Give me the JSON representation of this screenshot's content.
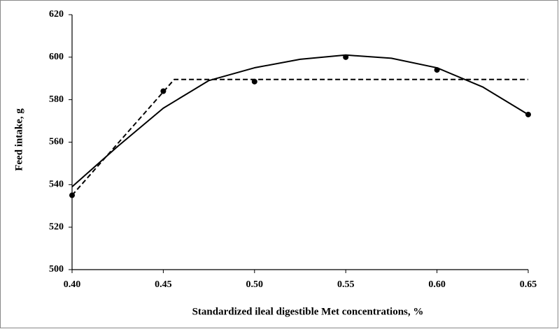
{
  "chart_data": {
    "type": "scatter",
    "xlabel": "Standardized ileal digestible Met concentrations, %",
    "ylabel": "Feed intake, g",
    "xlim": [
      0.4,
      0.65
    ],
    "xticks": [
      {
        "value": 0.4,
        "label": "0.40"
      },
      {
        "value": 0.45,
        "label": "0.45"
      },
      {
        "value": 0.5,
        "label": "0.50"
      },
      {
        "value": 0.55,
        "label": "0.55"
      },
      {
        "value": 0.6,
        "label": "0.60"
      },
      {
        "value": 0.65,
        "label": "0.65"
      }
    ],
    "ylim": [
      500,
      620
    ],
    "yticks": [
      500,
      520,
      540,
      560,
      580,
      600,
      620
    ],
    "grid": false,
    "series": [
      {
        "mode": "markers",
        "color": "#000000",
        "x": [
          0.4,
          0.45,
          0.5,
          0.55,
          0.6,
          0.65
        ],
        "values": [
          535,
          584,
          588.5,
          600,
          594,
          573
        ]
      },
      {
        "mode": "line",
        "dash": false,
        "color": "#000000",
        "x": [
          0.4,
          0.425,
          0.45,
          0.475,
          0.5,
          0.525,
          0.55,
          0.575,
          0.6,
          0.625,
          0.65
        ],
        "values": [
          539,
          558,
          576,
          589,
          595,
          599,
          601,
          599.5,
          595,
          586,
          573
        ]
      },
      {
        "mode": "line",
        "dash": true,
        "color": "#000000",
        "x": [
          0.4,
          0.456,
          0.65
        ],
        "values": [
          535,
          589.5,
          589.5
        ]
      }
    ]
  }
}
